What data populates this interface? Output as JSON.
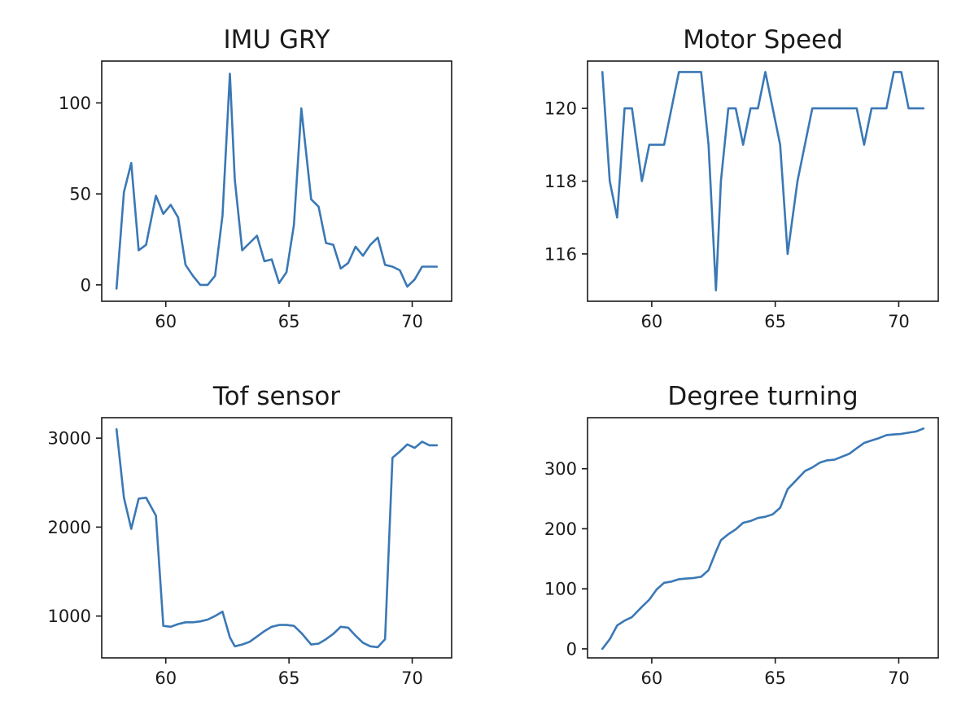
{
  "colors": {
    "line": "#3a78b5",
    "axis": "#1a1a1a",
    "background": "#ffffff"
  },
  "chart_data": [
    {
      "type": "line",
      "title": "IMU GRY",
      "xlabel": "",
      "ylabel": "",
      "xlim": [
        57.4,
        71.6
      ],
      "ylim": [
        -9,
        123
      ],
      "xticks": [
        60,
        65,
        70
      ],
      "yticks": [
        0,
        50,
        100
      ],
      "grid": false,
      "x": [
        58.0,
        58.3,
        58.6,
        58.9,
        59.2,
        59.6,
        59.9,
        60.2,
        60.5,
        60.8,
        61.1,
        61.4,
        61.7,
        62.0,
        62.3,
        62.6,
        62.8,
        63.1,
        63.4,
        63.7,
        64.0,
        64.3,
        64.6,
        64.9,
        65.2,
        65.5,
        65.9,
        66.2,
        66.5,
        66.8,
        67.1,
        67.4,
        67.7,
        68.0,
        68.3,
        68.6,
        68.9,
        69.2,
        69.5,
        69.8,
        70.1,
        70.4,
        70.7,
        71.0
      ],
      "series": [
        {
          "values": [
            -2,
            51,
            67,
            19,
            22,
            49,
            39,
            44,
            37,
            11,
            5,
            0,
            0,
            5,
            38,
            116,
            58,
            19,
            23,
            27,
            13,
            14,
            1,
            7,
            33,
            97,
            47,
            43,
            23,
            22,
            9,
            12,
            21,
            16,
            22,
            26,
            11,
            10,
            8,
            -1,
            3,
            10,
            10,
            10
          ]
        }
      ]
    },
    {
      "type": "line",
      "title": "Motor Speed",
      "xlabel": "",
      "ylabel": "",
      "xlim": [
        57.4,
        71.6
      ],
      "ylim": [
        114.7,
        121.3
      ],
      "xticks": [
        60,
        65,
        70
      ],
      "yticks": [
        116,
        118,
        120
      ],
      "grid": false,
      "x": [
        58.0,
        58.3,
        58.6,
        58.9,
        59.2,
        59.6,
        59.9,
        60.2,
        60.5,
        60.8,
        61.1,
        61.4,
        61.7,
        62.0,
        62.3,
        62.6,
        62.8,
        63.1,
        63.4,
        63.7,
        64.0,
        64.3,
        64.6,
        64.9,
        65.2,
        65.5,
        65.9,
        66.2,
        66.5,
        66.8,
        67.1,
        67.4,
        67.7,
        68.0,
        68.3,
        68.6,
        68.9,
        69.2,
        69.5,
        69.8,
        70.1,
        70.4,
        70.7,
        71.0
      ],
      "series": [
        {
          "values": [
            121,
            118,
            117,
            120,
            120,
            118,
            119,
            119,
            119,
            120,
            121,
            121,
            121,
            121,
            119,
            115,
            118,
            120,
            120,
            119,
            120,
            120,
            121,
            120,
            119,
            116,
            118,
            119,
            120,
            120,
            120,
            120,
            120,
            120,
            120,
            119,
            120,
            120,
            120,
            121,
            121,
            120,
            120,
            120
          ]
        }
      ]
    },
    {
      "type": "line",
      "title": "Tof sensor",
      "xlabel": "",
      "ylabel": "",
      "xlim": [
        57.4,
        71.6
      ],
      "ylim": [
        530,
        3230
      ],
      "xticks": [
        60,
        65,
        70
      ],
      "yticks": [
        1000,
        2000,
        3000
      ],
      "grid": false,
      "x": [
        58.0,
        58.3,
        58.6,
        58.9,
        59.2,
        59.6,
        59.9,
        60.2,
        60.5,
        60.8,
        61.1,
        61.4,
        61.7,
        62.0,
        62.3,
        62.6,
        62.8,
        63.1,
        63.4,
        63.7,
        64.0,
        64.3,
        64.6,
        64.9,
        65.2,
        65.5,
        65.9,
        66.2,
        66.5,
        66.8,
        67.1,
        67.4,
        67.7,
        68.0,
        68.3,
        68.6,
        68.9,
        69.2,
        69.5,
        69.8,
        70.1,
        70.4,
        70.7,
        71.0
      ],
      "series": [
        {
          "values": [
            3100,
            2330,
            1980,
            2320,
            2330,
            2130,
            890,
            880,
            910,
            930,
            930,
            940,
            960,
            1000,
            1050,
            760,
            660,
            680,
            710,
            770,
            830,
            880,
            900,
            900,
            890,
            810,
            680,
            690,
            740,
            800,
            880,
            870,
            780,
            700,
            660,
            650,
            740,
            2780,
            2850,
            2930,
            2890,
            2960,
            2920,
            2920
          ]
        }
      ]
    },
    {
      "type": "line",
      "title": "Degree turning",
      "xlabel": "",
      "ylabel": "",
      "xlim": [
        57.4,
        71.6
      ],
      "ylim": [
        -15,
        385
      ],
      "xticks": [
        60,
        65,
        70
      ],
      "yticks": [
        0,
        100,
        200,
        300
      ],
      "grid": false,
      "x": [
        58.0,
        58.3,
        58.6,
        58.9,
        59.2,
        59.6,
        59.9,
        60.2,
        60.5,
        60.8,
        61.1,
        61.4,
        61.7,
        62.0,
        62.3,
        62.6,
        62.8,
        63.1,
        63.4,
        63.7,
        64.0,
        64.3,
        64.6,
        64.9,
        65.2,
        65.5,
        65.9,
        66.2,
        66.5,
        66.8,
        67.1,
        67.4,
        67.7,
        68.0,
        68.3,
        68.6,
        68.9,
        69.2,
        69.5,
        69.8,
        70.1,
        70.4,
        70.7,
        71.0
      ],
      "series": [
        {
          "values": [
            0,
            16,
            39,
            47,
            53,
            70,
            82,
            99,
            110,
            112,
            116,
            117,
            118,
            120,
            131,
            162,
            181,
            191,
            199,
            210,
            213,
            218,
            220,
            224,
            235,
            266,
            283,
            296,
            302,
            310,
            314,
            315,
            320,
            325,
            334,
            343,
            347,
            351,
            356,
            357,
            358,
            360,
            362,
            367
          ]
        }
      ]
    }
  ]
}
